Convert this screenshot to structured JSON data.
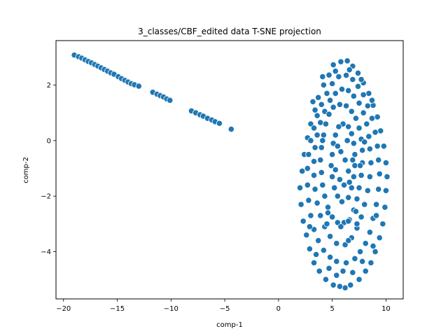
{
  "chart_data": {
    "type": "scatter",
    "title": "3_classes/CBF_edited data T-SNE projection",
    "xlabel": "comp-1",
    "ylabel": "comp-2",
    "xlim": [
      -20.7,
      11.6
    ],
    "ylim": [
      -5.7,
      3.6
    ],
    "xticks": [
      -20,
      -15,
      -10,
      -5,
      0,
      5,
      10
    ],
    "yticks": [
      -4,
      -2,
      0,
      2
    ],
    "grid": false,
    "legend": "none",
    "marker_color": "#1f77b4",
    "marker_edge": "#ffffff",
    "series": [
      {
        "points": [
          [
            -19.0,
            3.08
          ],
          [
            -18.6,
            3.02
          ],
          [
            -18.3,
            2.97
          ],
          [
            -18.0,
            2.91
          ],
          [
            -17.7,
            2.85
          ],
          [
            -17.4,
            2.8
          ],
          [
            -17.1,
            2.74
          ],
          [
            -16.8,
            2.68
          ],
          [
            -16.5,
            2.62
          ],
          [
            -16.2,
            2.56
          ],
          [
            -15.9,
            2.5
          ],
          [
            -15.6,
            2.44
          ],
          [
            -15.3,
            2.39
          ],
          [
            -14.9,
            2.3
          ],
          [
            -14.6,
            2.23
          ],
          [
            -14.3,
            2.17
          ],
          [
            -14.0,
            2.11
          ],
          [
            -13.7,
            2.05
          ],
          [
            -13.4,
            2.01
          ],
          [
            -13.0,
            1.96
          ],
          [
            -11.7,
            1.74
          ],
          [
            -11.3,
            1.67
          ],
          [
            -11.0,
            1.62
          ],
          [
            -10.7,
            1.57
          ],
          [
            -10.4,
            1.5
          ],
          [
            -10.1,
            1.45
          ],
          [
            -8.1,
            1.07
          ],
          [
            -7.7,
            1.0
          ],
          [
            -7.3,
            0.93
          ],
          [
            -7.0,
            0.88
          ],
          [
            -6.6,
            0.8
          ],
          [
            -6.2,
            0.74
          ],
          [
            -5.9,
            0.68
          ],
          [
            -5.5,
            0.62
          ],
          [
            -4.4,
            0.41
          ],
          [
            6.4,
            2.87
          ],
          [
            5.8,
            2.84
          ],
          [
            6.9,
            2.68
          ],
          [
            5.1,
            2.73
          ],
          [
            7.4,
            2.43
          ],
          [
            4.7,
            2.36
          ],
          [
            7.9,
            2.08
          ],
          [
            4.2,
            2.0
          ],
          [
            8.4,
            1.7
          ],
          [
            3.7,
            1.55
          ],
          [
            8.8,
            1.27
          ],
          [
            3.4,
            1.1
          ],
          [
            9.2,
            0.85
          ],
          [
            3.0,
            0.6
          ],
          [
            9.5,
            0.35
          ],
          [
            2.7,
            0.1
          ],
          [
            9.8,
            -0.2
          ],
          [
            2.4,
            -0.5
          ],
          [
            10.0,
            -0.8
          ],
          [
            2.2,
            -1.1
          ],
          [
            10.1,
            -1.3
          ],
          [
            2.0,
            -1.7
          ],
          [
            10.0,
            -1.8
          ],
          [
            2.1,
            -2.3
          ],
          [
            9.9,
            -2.4
          ],
          [
            2.3,
            -2.9
          ],
          [
            9.7,
            -3.0
          ],
          [
            2.6,
            -3.4
          ],
          [
            9.4,
            -3.5
          ],
          [
            2.9,
            -3.9
          ],
          [
            9.0,
            -4.0
          ],
          [
            3.3,
            -4.4
          ],
          [
            8.6,
            -4.4
          ],
          [
            3.8,
            -4.7
          ],
          [
            8.1,
            -4.7
          ],
          [
            4.4,
            -5.0
          ],
          [
            7.5,
            -5.0
          ],
          [
            5.1,
            -5.2
          ],
          [
            6.2,
            -5.3
          ],
          [
            5.7,
            -5.25
          ],
          [
            6.7,
            -5.2
          ],
          [
            6.3,
            2.35
          ],
          [
            5.6,
            2.3
          ],
          [
            6.9,
            2.2
          ],
          [
            5.0,
            2.05
          ],
          [
            7.4,
            1.95
          ],
          [
            4.5,
            1.7
          ],
          [
            7.9,
            1.65
          ],
          [
            4.0,
            1.3
          ],
          [
            8.3,
            1.25
          ],
          [
            3.6,
            0.9
          ],
          [
            8.7,
            0.8
          ],
          [
            3.3,
            0.45
          ],
          [
            9.0,
            0.3
          ],
          [
            3.0,
            0.0
          ],
          [
            9.2,
            -0.2
          ],
          [
            2.8,
            -0.5
          ],
          [
            9.3,
            -0.7
          ],
          [
            2.7,
            -1.0
          ],
          [
            9.4,
            -1.2
          ],
          [
            2.7,
            -1.6
          ],
          [
            9.3,
            -1.75
          ],
          [
            2.8,
            -2.15
          ],
          [
            9.1,
            -2.3
          ],
          [
            3.0,
            -2.7
          ],
          [
            8.8,
            -2.8
          ],
          [
            3.3,
            -3.2
          ],
          [
            8.5,
            -3.3
          ],
          [
            3.7,
            -3.6
          ],
          [
            8.1,
            -3.7
          ],
          [
            4.2,
            -3.95
          ],
          [
            7.6,
            -4.0
          ],
          [
            4.8,
            -4.2
          ],
          [
            7.1,
            -4.25
          ],
          [
            5.4,
            -4.35
          ],
          [
            6.3,
            -4.4
          ],
          [
            5.9,
            1.85
          ],
          [
            6.5,
            1.8
          ],
          [
            5.3,
            1.7
          ],
          [
            7.0,
            1.6
          ],
          [
            4.8,
            1.45
          ],
          [
            7.5,
            1.35
          ],
          [
            4.3,
            1.05
          ],
          [
            7.9,
            1.0
          ],
          [
            3.9,
            0.65
          ],
          [
            8.2,
            0.6
          ],
          [
            3.6,
            0.2
          ],
          [
            8.4,
            0.15
          ],
          [
            3.4,
            -0.25
          ],
          [
            8.5,
            -0.3
          ],
          [
            3.3,
            -0.75
          ],
          [
            8.6,
            -0.8
          ],
          [
            3.3,
            -1.25
          ],
          [
            8.5,
            -1.3
          ],
          [
            3.4,
            -1.75
          ],
          [
            8.3,
            -1.8
          ],
          [
            3.6,
            -2.25
          ],
          [
            8.0,
            -2.3
          ],
          [
            3.9,
            -2.7
          ],
          [
            7.7,
            -2.75
          ],
          [
            4.3,
            -3.1
          ],
          [
            7.3,
            -3.15
          ],
          [
            4.8,
            -3.45
          ],
          [
            6.8,
            -3.5
          ],
          [
            5.4,
            -3.7
          ],
          [
            6.2,
            -3.75
          ],
          [
            5.7,
            1.3
          ],
          [
            6.3,
            1.25
          ],
          [
            5.1,
            1.2
          ],
          [
            6.8,
            1.05
          ],
          [
            4.7,
            0.95
          ],
          [
            7.2,
            0.8
          ],
          [
            4.4,
            0.6
          ],
          [
            7.5,
            0.45
          ],
          [
            4.2,
            0.2
          ],
          [
            7.7,
            0.05
          ],
          [
            4.0,
            -0.25
          ],
          [
            7.8,
            -0.35
          ],
          [
            3.9,
            -0.7
          ],
          [
            7.8,
            -0.8
          ],
          [
            4.0,
            -1.15
          ],
          [
            7.7,
            -1.25
          ],
          [
            4.1,
            -1.6
          ],
          [
            7.5,
            -1.7
          ],
          [
            4.3,
            -2.0
          ],
          [
            7.3,
            -2.1
          ],
          [
            4.6,
            -2.4
          ],
          [
            7.0,
            -2.5
          ],
          [
            5.0,
            -2.75
          ],
          [
            6.6,
            -2.85
          ],
          [
            5.5,
            -2.95
          ],
          [
            6.1,
            -2.95
          ],
          [
            6.0,
            0.6
          ],
          [
            5.6,
            0.5
          ],
          [
            6.5,
            0.5
          ],
          [
            5.3,
            0.2
          ],
          [
            6.8,
            0.25
          ],
          [
            5.1,
            -0.1
          ],
          [
            7.0,
            -0.1
          ],
          [
            5.0,
            -0.5
          ],
          [
            7.1,
            -0.5
          ],
          [
            4.9,
            -0.9
          ],
          [
            7.1,
            -0.9
          ],
          [
            5.0,
            -1.3
          ],
          [
            7.0,
            -1.3
          ],
          [
            5.2,
            -1.7
          ],
          [
            6.8,
            -1.7
          ],
          [
            5.5,
            -2.0
          ],
          [
            6.5,
            -2.05
          ],
          [
            5.9,
            -2.2
          ],
          [
            6.2,
            -0.7
          ],
          [
            5.8,
            -0.4
          ],
          [
            6.5,
            -1.1
          ],
          [
            5.7,
            -1.4
          ],
          [
            6.1,
            -1.6
          ],
          [
            6.4,
            0.0
          ],
          [
            5.5,
            -0.2
          ],
          [
            6.6,
            -1.5
          ],
          [
            5.3,
            -1.05
          ],
          [
            6.9,
            -0.7
          ],
          [
            6.5,
            -2.9
          ],
          [
            5.8,
            -3.1
          ],
          [
            4.5,
            -3.0
          ],
          [
            7.2,
            -2.55
          ],
          [
            7.6,
            -0.9
          ],
          [
            7.3,
            -3.0
          ],
          [
            4.6,
            -2.6
          ],
          [
            8.0,
            -0.05
          ],
          [
            4.1,
            0.0
          ],
          [
            6.6,
            2.55
          ],
          [
            5.3,
            2.5
          ],
          [
            7.7,
            2.2
          ],
          [
            4.1,
            2.3
          ],
          [
            8.7,
            1.45
          ],
          [
            3.2,
            1.4
          ],
          [
            9.1,
            -2.7
          ],
          [
            2.9,
            -3.1
          ],
          [
            8.8,
            -3.8
          ],
          [
            3.5,
            -4.1
          ],
          [
            7.8,
            -4.35
          ],
          [
            4.7,
            -4.6
          ],
          [
            6.9,
            -4.75
          ],
          [
            5.4,
            -4.85
          ],
          [
            6.0,
            -4.7
          ],
          [
            6.5,
            -3.6
          ]
        ]
      }
    ]
  }
}
